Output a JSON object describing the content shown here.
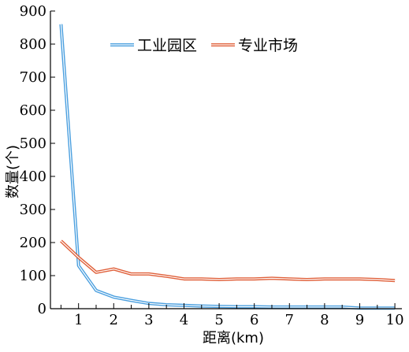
{
  "chart_data": {
    "type": "line",
    "title": "",
    "xlabel": "距离(km)",
    "ylabel": "数量(个)",
    "xlim": [
      0.2,
      10.2
    ],
    "ylim": [
      0,
      900
    ],
    "x_ticks": [
      1,
      2,
      3,
      4,
      5,
      6,
      7,
      8,
      9,
      10
    ],
    "y_ticks": [
      0,
      100,
      200,
      300,
      400,
      500,
      600,
      700,
      800,
      900
    ],
    "legend_position": "top-center",
    "series": [
      {
        "name": "工业园区",
        "color": "#4a9fdf",
        "x": [
          0.5,
          1,
          1.5,
          2,
          2.5,
          3,
          3.5,
          4,
          4.5,
          5,
          5.5,
          6,
          6.5,
          7,
          7.5,
          8,
          8.5,
          9,
          9.5,
          10
        ],
        "y": [
          860,
          130,
          55,
          35,
          25,
          16,
          12,
          10,
          8,
          7,
          6,
          6,
          5,
          5,
          5,
          5,
          5,
          2,
          2,
          2
        ]
      },
      {
        "name": "专业市场",
        "color": "#e0603a",
        "x": [
          0.5,
          1,
          1.5,
          2,
          2.5,
          3,
          3.5,
          4,
          4.5,
          5,
          5.5,
          6,
          6.5,
          7,
          7.5,
          8,
          8.5,
          9,
          9.5,
          10
        ],
        "y": [
          205,
          155,
          110,
          120,
          105,
          105,
          98,
          90,
          90,
          88,
          90,
          90,
          92,
          90,
          88,
          90,
          90,
          90,
          88,
          85
        ]
      }
    ]
  }
}
